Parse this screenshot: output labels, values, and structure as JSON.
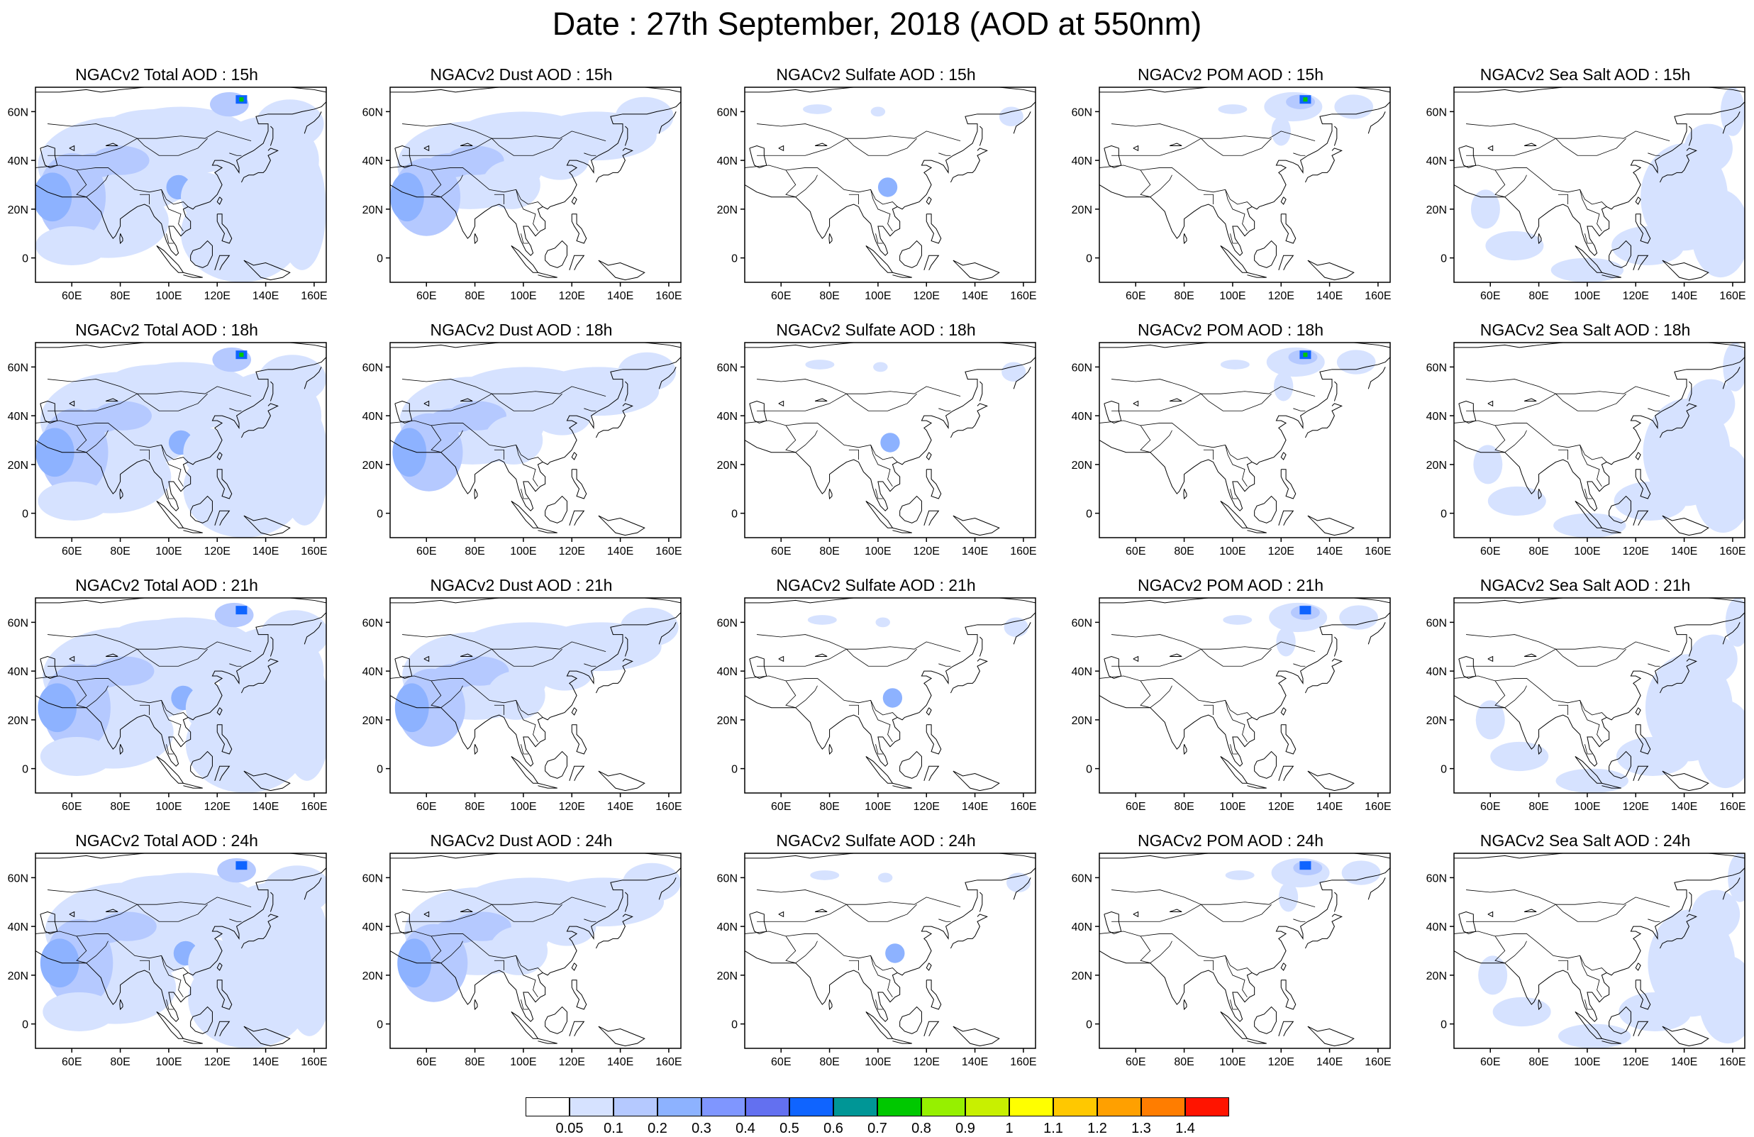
{
  "title": "Date : 27th September, 2018 (AOD at 550nm)",
  "panels": [
    [
      "NGACv2 Total AOD : 15h",
      "NGACv2 Dust AOD : 15h",
      "NGACv2 Sulfate AOD : 15h",
      "NGACv2 POM AOD : 15h",
      "NGACv2 Sea Salt AOD : 15h"
    ],
    [
      "NGACv2 Total AOD : 18h",
      "NGACv2 Dust AOD : 18h",
      "NGACv2 Sulfate AOD : 18h",
      "NGACv2 POM AOD : 18h",
      "NGACv2 Sea Salt AOD : 18h"
    ],
    [
      "NGACv2 Total AOD : 21h",
      "NGACv2 Dust AOD : 21h",
      "NGACv2 Sulfate AOD : 21h",
      "NGACv2 POM AOD : 21h",
      "NGACv2 Sea Salt AOD : 21h"
    ],
    [
      "NGACv2 Total AOD : 24h",
      "NGACv2 Dust AOD : 24h",
      "NGACv2 Sulfate AOD : 24h",
      "NGACv2 POM AOD : 24h",
      "NGACv2 Sea Salt  AOD : 24h"
    ]
  ],
  "lat_ticks": [
    "60N",
    "40N",
    "20N",
    "0"
  ],
  "lon_ticks": [
    "60E",
    "80E",
    "100E",
    "120E",
    "140E",
    "160E"
  ],
  "colorbar": {
    "colors": [
      "#ffffff",
      "#d6e2ff",
      "#b5c9ff",
      "#8db2ff",
      "#7f96ff",
      "#6370f0",
      "#0f64ff",
      "#009696",
      "#00c800",
      "#96f000",
      "#c8f000",
      "#ffff00",
      "#ffc800",
      "#ffa000",
      "#ff7d00",
      "#ff1400"
    ],
    "labels": [
      "0.05",
      "0.1",
      "0.2",
      "0.3",
      "0.4",
      "0.5",
      "0.6",
      "0.7",
      "0.8",
      "0.9",
      "1",
      "1.1",
      "1.2",
      "1.3",
      "1.4"
    ]
  }
}
